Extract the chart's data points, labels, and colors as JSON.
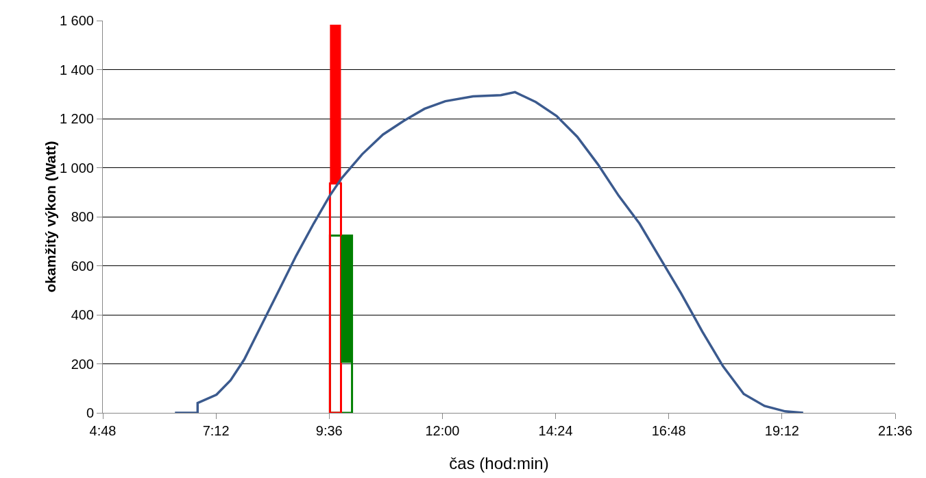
{
  "chart_data": {
    "type": "line",
    "xlabel": "čas (hod:min)",
    "ylabel": "okamžitý výkon (Watt)",
    "xlim": [
      4.8,
      21.6
    ],
    "xticks": [
      {
        "value": 4.8,
        "label": "4:48"
      },
      {
        "value": 7.2,
        "label": "7:12"
      },
      {
        "value": 9.6,
        "label": "9:36"
      },
      {
        "value": 12,
        "label": "12:00"
      },
      {
        "value": 14.4,
        "label": "14:24"
      },
      {
        "value": 16.8,
        "label": "16:48"
      },
      {
        "value": 19.2,
        "label": "19:12"
      },
      {
        "value": 21.6,
        "label": "21:36"
      }
    ],
    "ylim": [
      0,
      1600
    ],
    "yticks": [
      {
        "value": 0,
        "label": "0"
      },
      {
        "value": 200,
        "label": "200"
      },
      {
        "value": 400,
        "label": "400"
      },
      {
        "value": 600,
        "label": "600"
      },
      {
        "value": 800,
        "label": "800"
      },
      {
        "value": 1000,
        "label": "1 000"
      },
      {
        "value": 1200,
        "label": "1 200"
      },
      {
        "value": 1400,
        "label": "1 400"
      },
      {
        "value": 1600,
        "label": "1 600"
      }
    ],
    "grid": "y",
    "series": [
      {
        "color": "#3b5a8e",
        "x": [
          6.33,
          6.81,
          6.81,
          7.21,
          7.51,
          7.8,
          8.17,
          8.54,
          8.9,
          9.27,
          9.61,
          9.86,
          10.3,
          10.74,
          11.18,
          11.62,
          12.06,
          12.65,
          13.24,
          13.54,
          13.98,
          14.42,
          14.86,
          15.3,
          15.74,
          16.18,
          16.62,
          17.06,
          17.51,
          17.95,
          18.39,
          18.83,
          19.27,
          19.65
        ],
        "values": [
          0,
          0,
          40,
          74,
          133,
          218,
          360,
          502,
          641,
          772,
          885,
          956,
          1055,
          1135,
          1191,
          1240,
          1271,
          1291,
          1296,
          1308,
          1268,
          1211,
          1126,
          1013,
          885,
          772,
          630,
          488,
          332,
          190,
          77,
          28,
          6,
          0
        ]
      },
      {
        "type": "bar",
        "color": "#008000",
        "line_style": "solid",
        "x": [
          9.85
        ],
        "base": [
          0
        ],
        "values": [
          723
        ]
      },
      {
        "type": "bar",
        "color": "#ff0000",
        "line_style": "solid",
        "x": [
          9.733
        ],
        "base": [
          0
        ],
        "values": [
          936
        ]
      },
      {
        "type": "bar",
        "color": "#ff0000",
        "x": [
          9.733
        ],
        "base": [
          936
        ],
        "values": [
          647
        ]
      },
      {
        "type": "bar",
        "color": "#008000",
        "x": [
          9.967
        ],
        "base": [
          204
        ],
        "values": [
          519
        ]
      }
    ]
  }
}
